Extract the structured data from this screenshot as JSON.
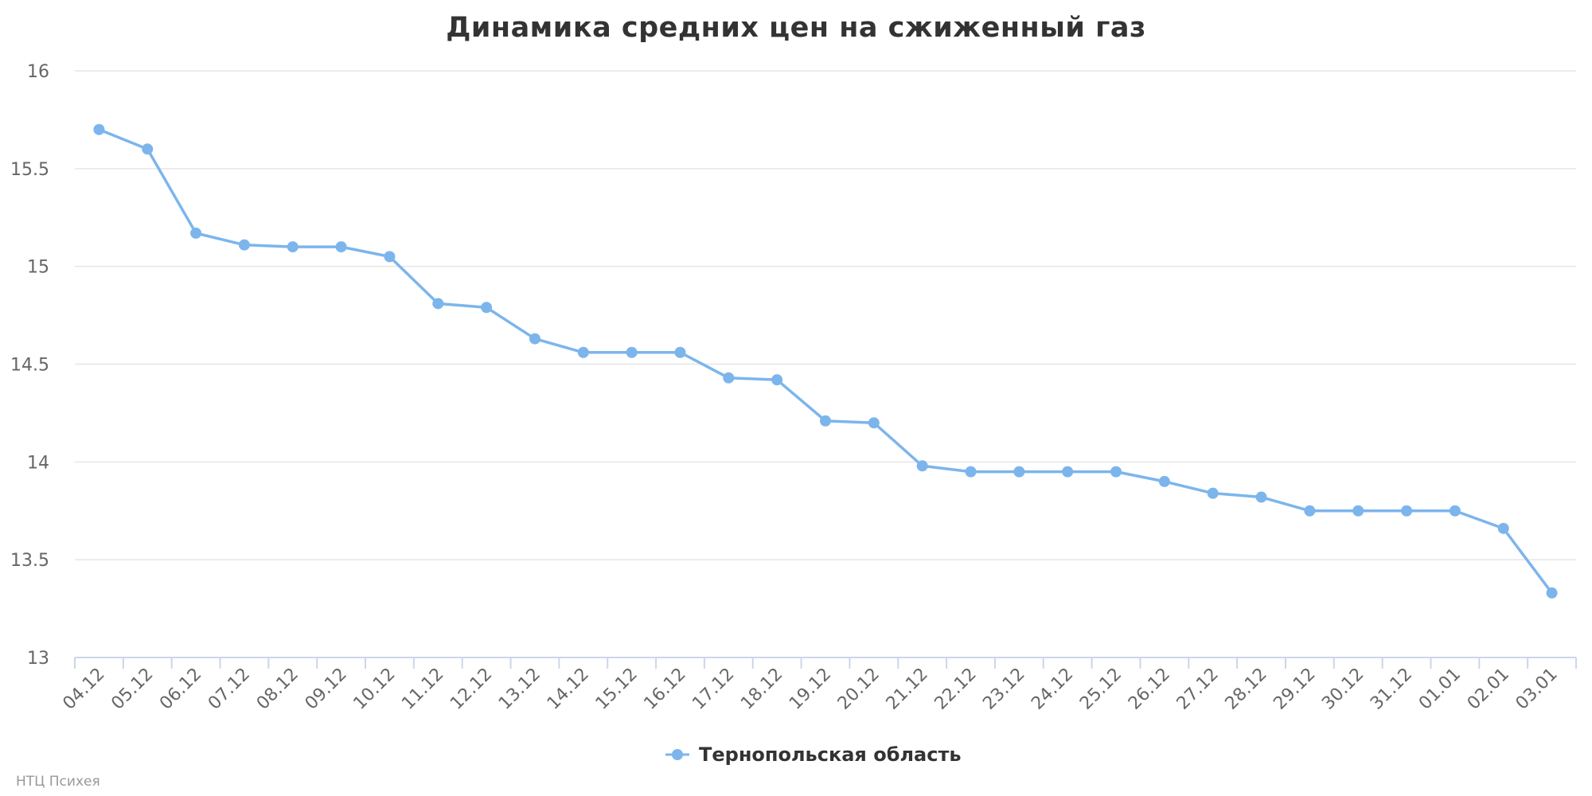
{
  "chart_data": {
    "type": "line",
    "title": "Динамика средних цен на сжиженный газ",
    "categories": [
      "04.12",
      "05.12",
      "06.12",
      "07.12",
      "08.12",
      "09.12",
      "10.12",
      "11.12",
      "12.12",
      "13.12",
      "14.12",
      "15.12",
      "16.12",
      "17.12",
      "18.12",
      "19.12",
      "20.12",
      "21.12",
      "22.12",
      "23.12",
      "24.12",
      "25.12",
      "26.12",
      "27.12",
      "28.12",
      "29.12",
      "30.12",
      "31.12",
      "01.01",
      "02.01",
      "03.01"
    ],
    "series": [
      {
        "name": "Тернопольская область",
        "color": "#7cb5ec",
        "values": [
          15.7,
          15.6,
          15.17,
          15.11,
          15.1,
          15.1,
          15.05,
          14.81,
          14.79,
          14.63,
          14.56,
          14.56,
          14.56,
          14.43,
          14.42,
          14.21,
          14.2,
          13.98,
          13.95,
          13.95,
          13.95,
          13.95,
          13.9,
          13.84,
          13.82,
          13.75,
          13.75,
          13.75,
          13.75,
          13.66,
          13.33
        ]
      }
    ],
    "yticks": [
      "13",
      "13.5",
      "14",
      "14.5",
      "15",
      "15.5",
      "16"
    ],
    "ylim": [
      13,
      16
    ],
    "grid": true,
    "legend": "bottom-center"
  },
  "credit": "НТЦ Психея"
}
